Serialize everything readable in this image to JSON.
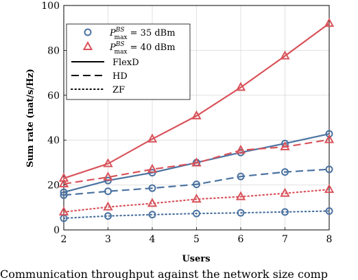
{
  "chart_data": {
    "type": "line",
    "xlabel": "Users",
    "ylabel": "Sum rate (nat/s/Hz)",
    "x": [
      2,
      3,
      4,
      5,
      6,
      7,
      8
    ],
    "xlim": [
      2,
      8
    ],
    "ylim": [
      0,
      100
    ],
    "xticks": [
      2,
      3,
      4,
      5,
      6,
      7,
      8
    ],
    "yticks": [
      0,
      20,
      40,
      60,
      80,
      100
    ],
    "grid": true,
    "legend": {
      "placement": "top-left",
      "entries": [
        {
          "base": "P",
          "sup": "BS",
          "sub": "max",
          "value": " = 35 dBm",
          "marker": "circle",
          "color": "#4a72a0"
        },
        {
          "base": "P",
          "sup": "BS",
          "sub": "max",
          "value": " = 40 dBm",
          "marker": "triangle",
          "color": "#d9525a"
        },
        {
          "label": "FlexD",
          "linestyle": "solid"
        },
        {
          "label": "HD",
          "linestyle": "dashed"
        },
        {
          "label": "ZF",
          "linestyle": "dotted"
        }
      ]
    },
    "series": [
      {
        "power": "35 dBm",
        "scheme": "FlexD",
        "color": "#4a72a0",
        "marker": "circle",
        "linestyle": "solid",
        "values": [
          16.8,
          22.0,
          25.5,
          30.0,
          34.5,
          38.5,
          42.8
        ]
      },
      {
        "power": "40 dBm",
        "scheme": "FlexD",
        "color": "#d9525a",
        "marker": "triangle",
        "linestyle": "solid",
        "values": [
          23.0,
          29.5,
          40.5,
          50.8,
          63.5,
          77.5,
          92.0
        ]
      },
      {
        "power": "35 dBm",
        "scheme": "HD",
        "color": "#4a72a0",
        "marker": "circle",
        "linestyle": "dashed",
        "values": [
          15.5,
          17.2,
          18.6,
          20.3,
          23.8,
          25.8,
          27.0
        ]
      },
      {
        "power": "40 dBm",
        "scheme": "HD",
        "color": "#d9525a",
        "marker": "triangle",
        "linestyle": "dashed",
        "values": [
          20.5,
          23.5,
          27.0,
          29.8,
          35.5,
          37.0,
          40.2
        ]
      },
      {
        "power": "35 dBm",
        "scheme": "ZF",
        "color": "#4a72a0",
        "marker": "circle",
        "linestyle": "dotted",
        "values": [
          5.2,
          6.2,
          6.8,
          7.3,
          7.6,
          8.0,
          8.4
        ]
      },
      {
        "power": "40 dBm",
        "scheme": "ZF",
        "color": "#d9525a",
        "marker": "triangle",
        "linestyle": "dotted",
        "values": [
          8.0,
          10.2,
          11.8,
          13.7,
          14.8,
          16.3,
          18.0
        ]
      }
    ]
  },
  "caption": "Communication throughput against the network size comp"
}
